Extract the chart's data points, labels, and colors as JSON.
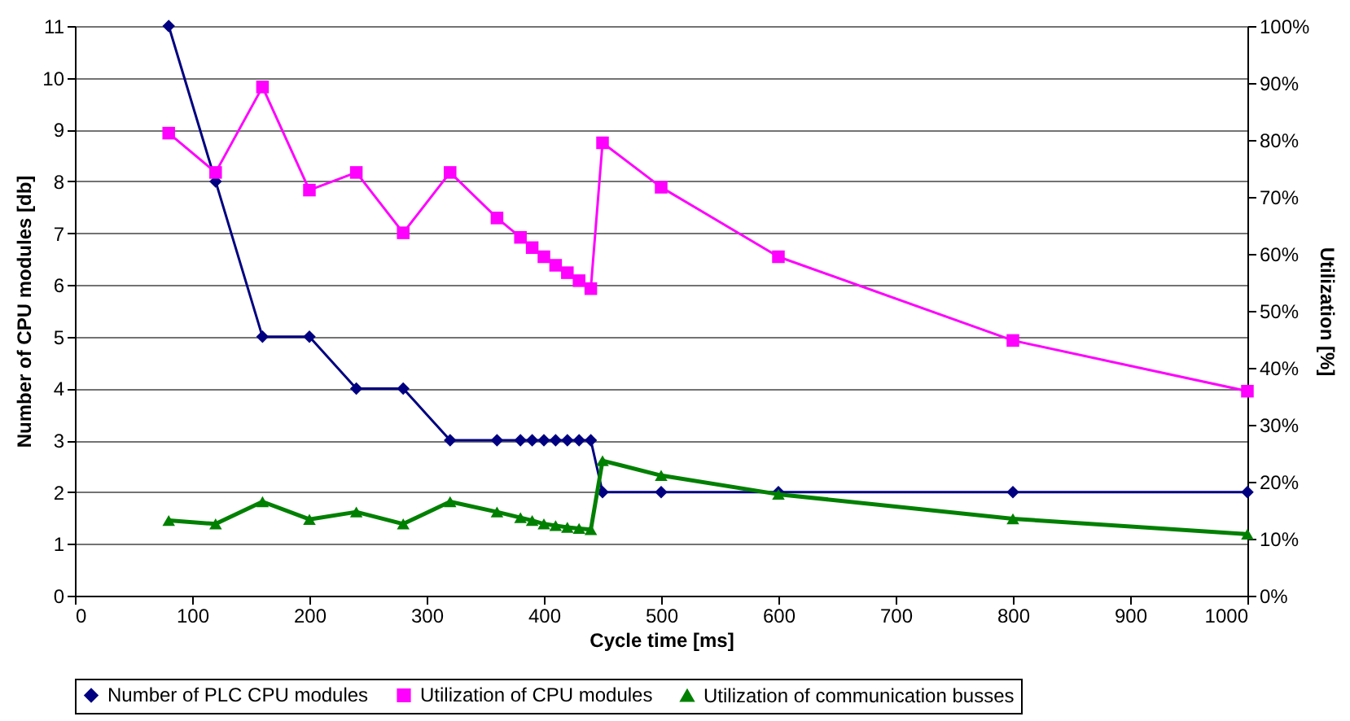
{
  "chart_data": {
    "type": "line",
    "xlabel": "Cycle time [ms]",
    "ylabel": "Number of CPU modules [db]",
    "y2label": "Utilization [%]",
    "xlim": [
      0,
      1000
    ],
    "xticks": [
      0,
      100,
      200,
      300,
      400,
      500,
      600,
      700,
      800,
      900,
      1000
    ],
    "ylim": [
      0,
      11
    ],
    "yticks": [
      0,
      1,
      2,
      3,
      4,
      5,
      6,
      7,
      8,
      9,
      10,
      11
    ],
    "y2lim": [
      0,
      100
    ],
    "y2ticks": [
      {
        "value": 0,
        "label": "0%"
      },
      {
        "value": 10,
        "label": "10%"
      },
      {
        "value": 20,
        "label": "20%"
      },
      {
        "value": 30,
        "label": "30%"
      },
      {
        "value": 40,
        "label": "40%"
      },
      {
        "value": 50,
        "label": "50%"
      },
      {
        "value": 60,
        "label": "60%"
      },
      {
        "value": 70,
        "label": "70%"
      },
      {
        "value": 80,
        "label": "80%"
      },
      {
        "value": 90,
        "label": "90%"
      },
      {
        "value": 100,
        "label": "100%"
      }
    ],
    "grid": "y",
    "legend": "bottom",
    "line_style": "solid",
    "x": [
      80,
      120,
      160,
      200,
      240,
      280,
      320,
      360,
      380,
      390,
      400,
      410,
      420,
      430,
      440,
      450,
      500,
      600,
      800,
      1000
    ],
    "series": [
      {
        "name": "Number of PLC CPU modules",
        "color": "#000080",
        "marker": "diamond",
        "values": [
          11,
          8,
          5,
          5,
          4,
          4,
          3,
          3,
          3,
          3,
          3,
          3,
          3,
          3,
          3,
          2,
          2,
          2,
          2,
          2
        ]
      },
      {
        "name": "Utilization of CPU modules",
        "color": "#ff00ff",
        "marker": "square",
        "axis": "y2",
        "values": [
          81.2,
          74.3,
          89.3,
          71.2,
          74.3,
          63.7,
          74.3,
          66.3,
          62.9,
          61.1,
          59.5,
          58.0,
          56.7,
          55.3,
          53.9,
          79.5,
          71.7,
          59.5,
          44.8,
          35.9
        ]
      },
      {
        "name": "Utilization of communication busses",
        "color": "#008000",
        "marker": "triangle",
        "axis": "y2",
        "values": [
          13.2,
          12.6,
          16.5,
          13.4,
          14.7,
          12.6,
          16.5,
          14.7,
          13.7,
          13.2,
          12.6,
          12.3,
          12.0,
          11.8,
          11.6,
          23.7,
          21.1,
          17.8,
          13.5,
          10.8
        ]
      }
    ]
  }
}
